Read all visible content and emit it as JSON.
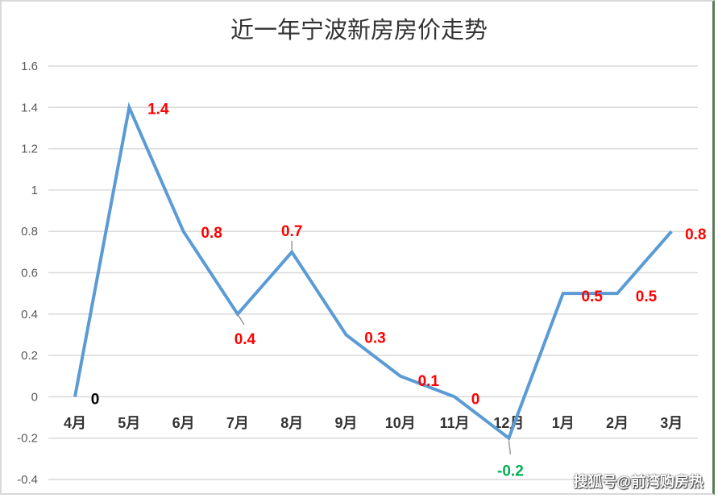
{
  "title": "近一年宁波新房房价走势",
  "watermark": "搜狐号@前湾购房热",
  "colors": {
    "line": "#5b9bd5",
    "label_positive": "#ff0000",
    "label_zero_first": "#000000",
    "label_negative": "#00b050",
    "grid": "#d9d9d9"
  },
  "chart_data": {
    "type": "line",
    "title": "近一年宁波新房房价走势",
    "xlabel": "",
    "ylabel": "",
    "categories": [
      "4月",
      "5月",
      "6月",
      "7月",
      "8月",
      "9月",
      "10月",
      "11月",
      "12月",
      "1月",
      "2月",
      "3月"
    ],
    "values": [
      0,
      1.4,
      0.8,
      0.4,
      0.7,
      0.3,
      0.1,
      0,
      -0.2,
      0.5,
      0.5,
      0.8
    ],
    "data_labels": [
      "0",
      "1.4",
      "0.8",
      "0.4",
      "0.7",
      "0.3",
      "0.1",
      "0",
      "-0.2",
      "0.5",
      "0.5",
      "0.8"
    ],
    "yticks": [
      "1.6",
      "1.4",
      "1.2",
      "1",
      "0.8",
      "0.6",
      "0.4",
      "0.2",
      "0",
      "-0.2",
      "-0.4"
    ],
    "ylim": [
      -0.4,
      1.6
    ],
    "grid": true,
    "legend": null
  }
}
